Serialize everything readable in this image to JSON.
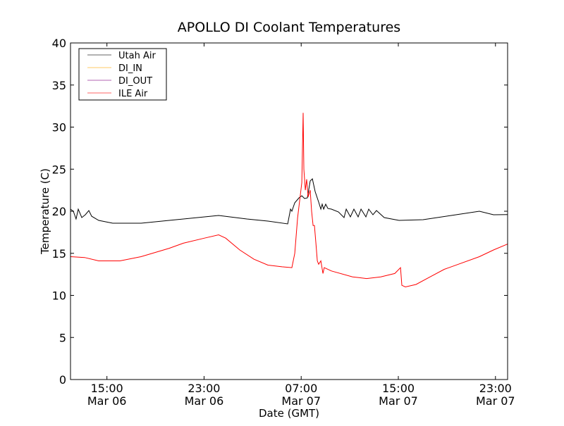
{
  "chart_data": {
    "type": "line",
    "title": "APOLLO DI Coolant Temperatures",
    "xlabel": "Date (GMT)",
    "ylabel": "Temperature (C)",
    "x_units": "hours since 12:00 Mar 06",
    "xlim": [
      0,
      36
    ],
    "ylim": [
      0,
      40
    ],
    "yticks": [
      0,
      5,
      10,
      15,
      20,
      25,
      30,
      35,
      40
    ],
    "xticks": [
      {
        "x": 3,
        "time": "15:00",
        "date": "Mar 06"
      },
      {
        "x": 11,
        "time": "23:00",
        "date": "Mar 06"
      },
      {
        "x": 19,
        "time": "07:00",
        "date": "Mar 07"
      },
      {
        "x": 27,
        "time": "15:00",
        "date": "Mar 07"
      },
      {
        "x": 35,
        "time": "23:00",
        "date": "Mar 07"
      }
    ],
    "grid": false,
    "legend_position": "top-left",
    "series": [
      {
        "name": "Utah Air",
        "color": "#000000",
        "x": [
          0,
          0.23,
          0.46,
          0.64,
          0.93,
          1.22,
          1.51,
          1.74,
          2.32,
          3.48,
          5.81,
          8.71,
          12.2,
          14.52,
          16.26,
          17.89,
          18.12,
          18.23,
          18.47,
          18.82,
          19.05,
          19.28,
          19.51,
          19.74,
          19.92,
          20.15,
          20.44,
          20.62,
          20.73,
          20.85,
          21.02,
          21.2,
          21.49,
          22.07,
          22.53,
          22.71,
          23.05,
          23.34,
          23.69,
          23.93,
          24.33,
          24.56,
          24.91,
          25.2,
          25.84,
          27.06,
          29.04,
          31.36,
          33.68,
          34.84,
          36
        ],
        "y": [
          20.25,
          20.0,
          19.08,
          20.25,
          19.25,
          19.58,
          20.08,
          19.41,
          18.91,
          18.58,
          18.58,
          19.0,
          19.5,
          19.08,
          18.83,
          18.49,
          20.25,
          20.0,
          21.0,
          21.59,
          21.84,
          21.51,
          21.59,
          23.6,
          23.85,
          22.34,
          21.09,
          20.25,
          20.84,
          20.25,
          20.84,
          20.33,
          20.25,
          19.92,
          19.25,
          20.25,
          19.33,
          20.25,
          19.33,
          20.25,
          19.33,
          20.25,
          19.58,
          20.08,
          19.25,
          18.91,
          19.0,
          19.5,
          20.0,
          19.58,
          19.6
        ]
      },
      {
        "name": "DI_IN",
        "color": "#ffa500",
        "x": [],
        "y": []
      },
      {
        "name": "DI_OUT",
        "color": "#800080",
        "x": [],
        "y": []
      },
      {
        "name": "ILE Air",
        "color": "#ff0000",
        "x": [
          0,
          1.16,
          2.32,
          4.07,
          5.81,
          8.13,
          9.29,
          11.03,
          12.2,
          12.78,
          13.94,
          15.1,
          16.26,
          17.42,
          18.23,
          18.47,
          18.7,
          19.05,
          19.16,
          19.22,
          19.34,
          19.45,
          19.57,
          19.74,
          19.86,
          19.98,
          20.09,
          20.21,
          20.33,
          20.44,
          20.62,
          20.79,
          20.9,
          21.49,
          23.23,
          24.39,
          25.55,
          26.71,
          27.18,
          27.29,
          27.58,
          28.46,
          29.62,
          30.78,
          31.94,
          33.68,
          34.84,
          36
        ],
        "y": [
          14.6,
          14.5,
          14.1,
          14.1,
          14.6,
          15.6,
          16.2,
          16.8,
          17.2,
          16.8,
          15.4,
          14.3,
          13.6,
          13.4,
          13.3,
          15.0,
          19.2,
          23.4,
          31.7,
          25.0,
          22.5,
          23.8,
          21.7,
          22.5,
          20.0,
          18.3,
          18.3,
          16.2,
          14.1,
          13.7,
          14.1,
          12.6,
          13.3,
          12.9,
          12.2,
          12.0,
          12.2,
          12.6,
          13.3,
          11.2,
          11.0,
          11.3,
          12.2,
          13.1,
          13.7,
          14.6,
          15.4,
          16.1
        ]
      }
    ]
  }
}
